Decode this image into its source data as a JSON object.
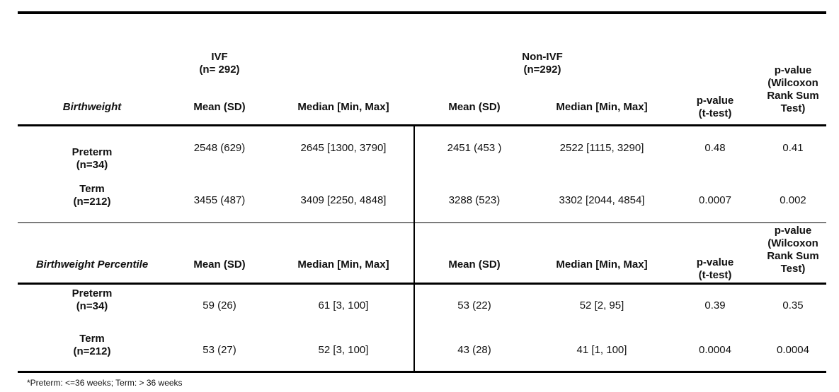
{
  "groups": {
    "ivf": [
      "IVF",
      "(n= 292)"
    ],
    "non_ivf": [
      "Non-IVF",
      "(n=292)"
    ]
  },
  "section1": {
    "label": "Birthweight",
    "headers": {
      "mean_sd": "Mean (SD)",
      "median": "Median [Min, Max]",
      "pvalue_t": [
        "p-value",
        "(t-test)"
      ],
      "pvalue_w": [
        "p-value",
        "(Wilcoxon",
        "Rank Sum",
        "Test)"
      ]
    },
    "rows": [
      {
        "label": [
          "Preterm",
          "(n=34)"
        ],
        "ivf_mean": "2548 (629)",
        "ivf_median": "2645 [1300, 3790]",
        "non_mean": "2451 (453 )",
        "non_median": "2522 [1115, 3290]",
        "p_t": "0.48",
        "p_w": "0.41"
      },
      {
        "label": [
          "Term",
          "(n=212)"
        ],
        "ivf_mean": "3455 (487)",
        "ivf_median": "3409 [2250, 4848]",
        "non_mean": "3288 (523)",
        "non_median": "3302 [2044, 4854]",
        "p_t": "0.0007",
        "p_w": "0.002"
      }
    ]
  },
  "section2": {
    "label": "Birthweight Percentile",
    "headers": {
      "mean_sd": "Mean (SD)",
      "median": "Median [Min, Max]",
      "pvalue_t": [
        "p-value",
        "(t-test)"
      ],
      "pvalue_w": [
        "p-value",
        "(Wilcoxon",
        "Rank Sum",
        "Test)"
      ]
    },
    "rows": [
      {
        "label": [
          "Preterm",
          "(n=34)"
        ],
        "ivf_mean": "59 (26)",
        "ivf_median": "61 [3, 100]",
        "non_mean": "53 (22)",
        "non_median": "52 [2, 95]",
        "p_t": "0.39",
        "p_w": "0.35"
      },
      {
        "label": [
          "Term",
          "(n=212)"
        ],
        "ivf_mean": "53 (27)",
        "ivf_median": "52 [3, 100]",
        "non_mean": "43 (28)",
        "non_median": "41 [1, 100]",
        "p_t": "0.0004",
        "p_w": "0.0004"
      }
    ]
  },
  "footnote": "*Preterm: <=36 weeks; Term: > 36 weeks"
}
